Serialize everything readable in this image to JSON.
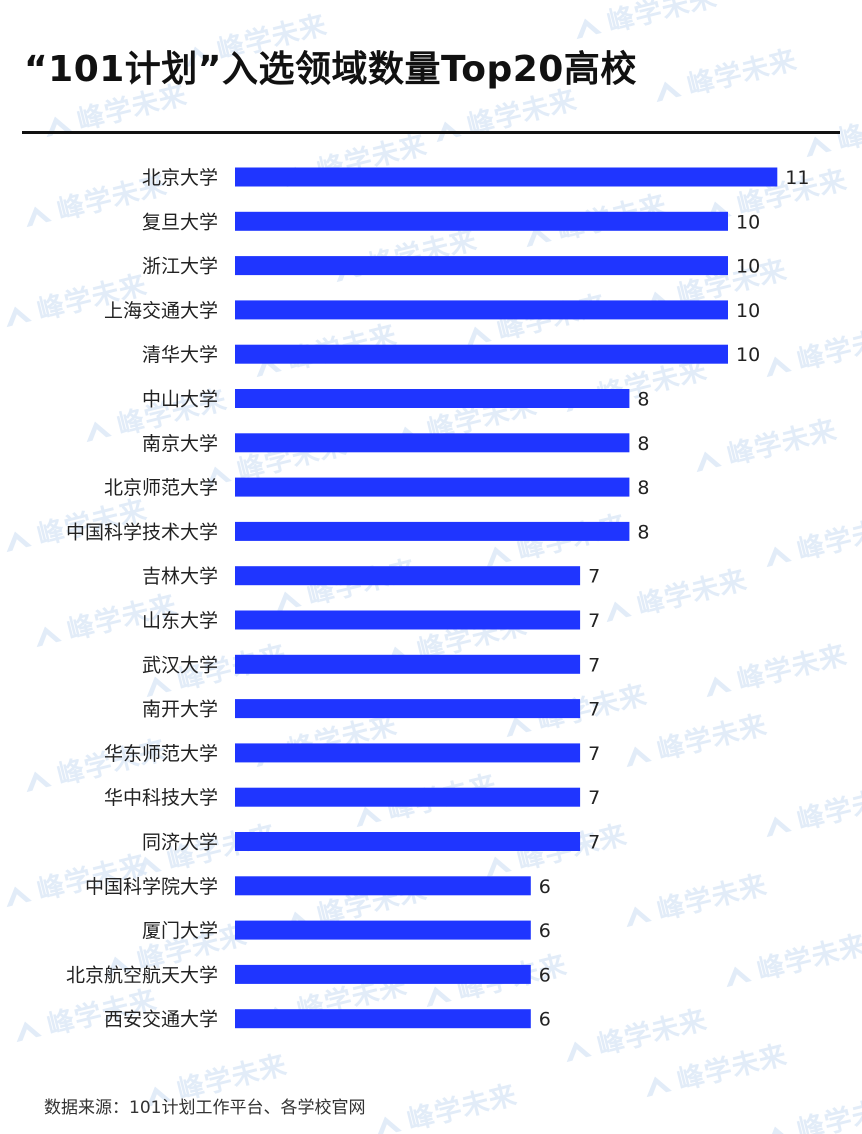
{
  "title": "“101计划”入选领域数量Top20高校",
  "source": "数据来源：101计划工作平台、各学校官网",
  "watermark": "峰学未来",
  "colors": {
    "bar": "#1f35ff",
    "text": "#222222",
    "watermark": "#dde9f7"
  },
  "chart_data": {
    "type": "bar",
    "orientation": "horizontal",
    "title": "“101计划”入选领域数量Top20高校",
    "categories": [
      "北京大学",
      "复旦大学",
      "浙江大学",
      "上海交通大学",
      "清华大学",
      "中山大学",
      "南京大学",
      "北京师范大学",
      "中国科学技术大学",
      "吉林大学",
      "山东大学",
      "武汉大学",
      "南开大学",
      "华东师范大学",
      "华中科技大学",
      "同济大学",
      "中国科学院大学",
      "厦门大学",
      "北京航空航天大学",
      "西安交通大学"
    ],
    "values": [
      11,
      10,
      10,
      10,
      10,
      8,
      8,
      8,
      8,
      7,
      7,
      7,
      7,
      7,
      7,
      7,
      6,
      6,
      6,
      6
    ],
    "xlim": [
      0,
      11
    ],
    "grid": false,
    "legend": "none",
    "data_labels": true
  }
}
